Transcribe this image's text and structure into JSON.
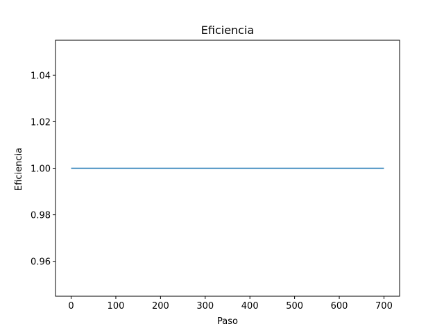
{
  "chart_data": {
    "type": "line",
    "title": "Eficiencia",
    "xlabel": "Paso",
    "ylabel": "Eficiencia",
    "xlim": [
      -35,
      735
    ],
    "ylim": [
      0.945,
      1.055
    ],
    "xticks": [
      0,
      100,
      200,
      300,
      400,
      500,
      600,
      700
    ],
    "xtick_labels": [
      "0",
      "100",
      "200",
      "300",
      "400",
      "500",
      "600",
      "700"
    ],
    "yticks": [
      0.96,
      0.98,
      1.0,
      1.02,
      1.04
    ],
    "ytick_labels": [
      "0.96",
      "0.98",
      "1.00",
      "1.02",
      "1.04"
    ],
    "grid": false,
    "series": [
      {
        "color": "#1f77b4",
        "x": [
          0,
          700
        ],
        "y": [
          1.0,
          1.0
        ]
      }
    ]
  }
}
